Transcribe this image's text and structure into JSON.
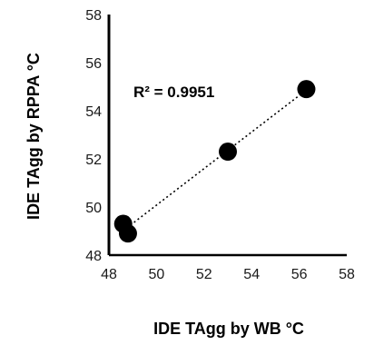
{
  "chart_data": {
    "type": "scatter",
    "xlabel": "IDE TAgg by WB °C",
    "ylabel": "IDE TAgg by RPPA °C",
    "xlim": [
      48,
      58
    ],
    "ylim": [
      48,
      58
    ],
    "xticks": [
      48,
      50,
      52,
      54,
      56,
      58
    ],
    "yticks": [
      48,
      50,
      52,
      54,
      56,
      58
    ],
    "points": [
      {
        "x": 48.6,
        "y": 49.3
      },
      {
        "x": 48.8,
        "y": 48.9
      },
      {
        "x": 53.0,
        "y": 52.3
      },
      {
        "x": 56.3,
        "y": 54.9
      }
    ],
    "trendline": {
      "type": "linear",
      "style": "dotted",
      "x_range": [
        48.6,
        56.3
      ]
    },
    "annotation": "R² = 0.9951",
    "grid": false,
    "colors": {
      "marker": "#000000",
      "axis": "#000000"
    }
  }
}
